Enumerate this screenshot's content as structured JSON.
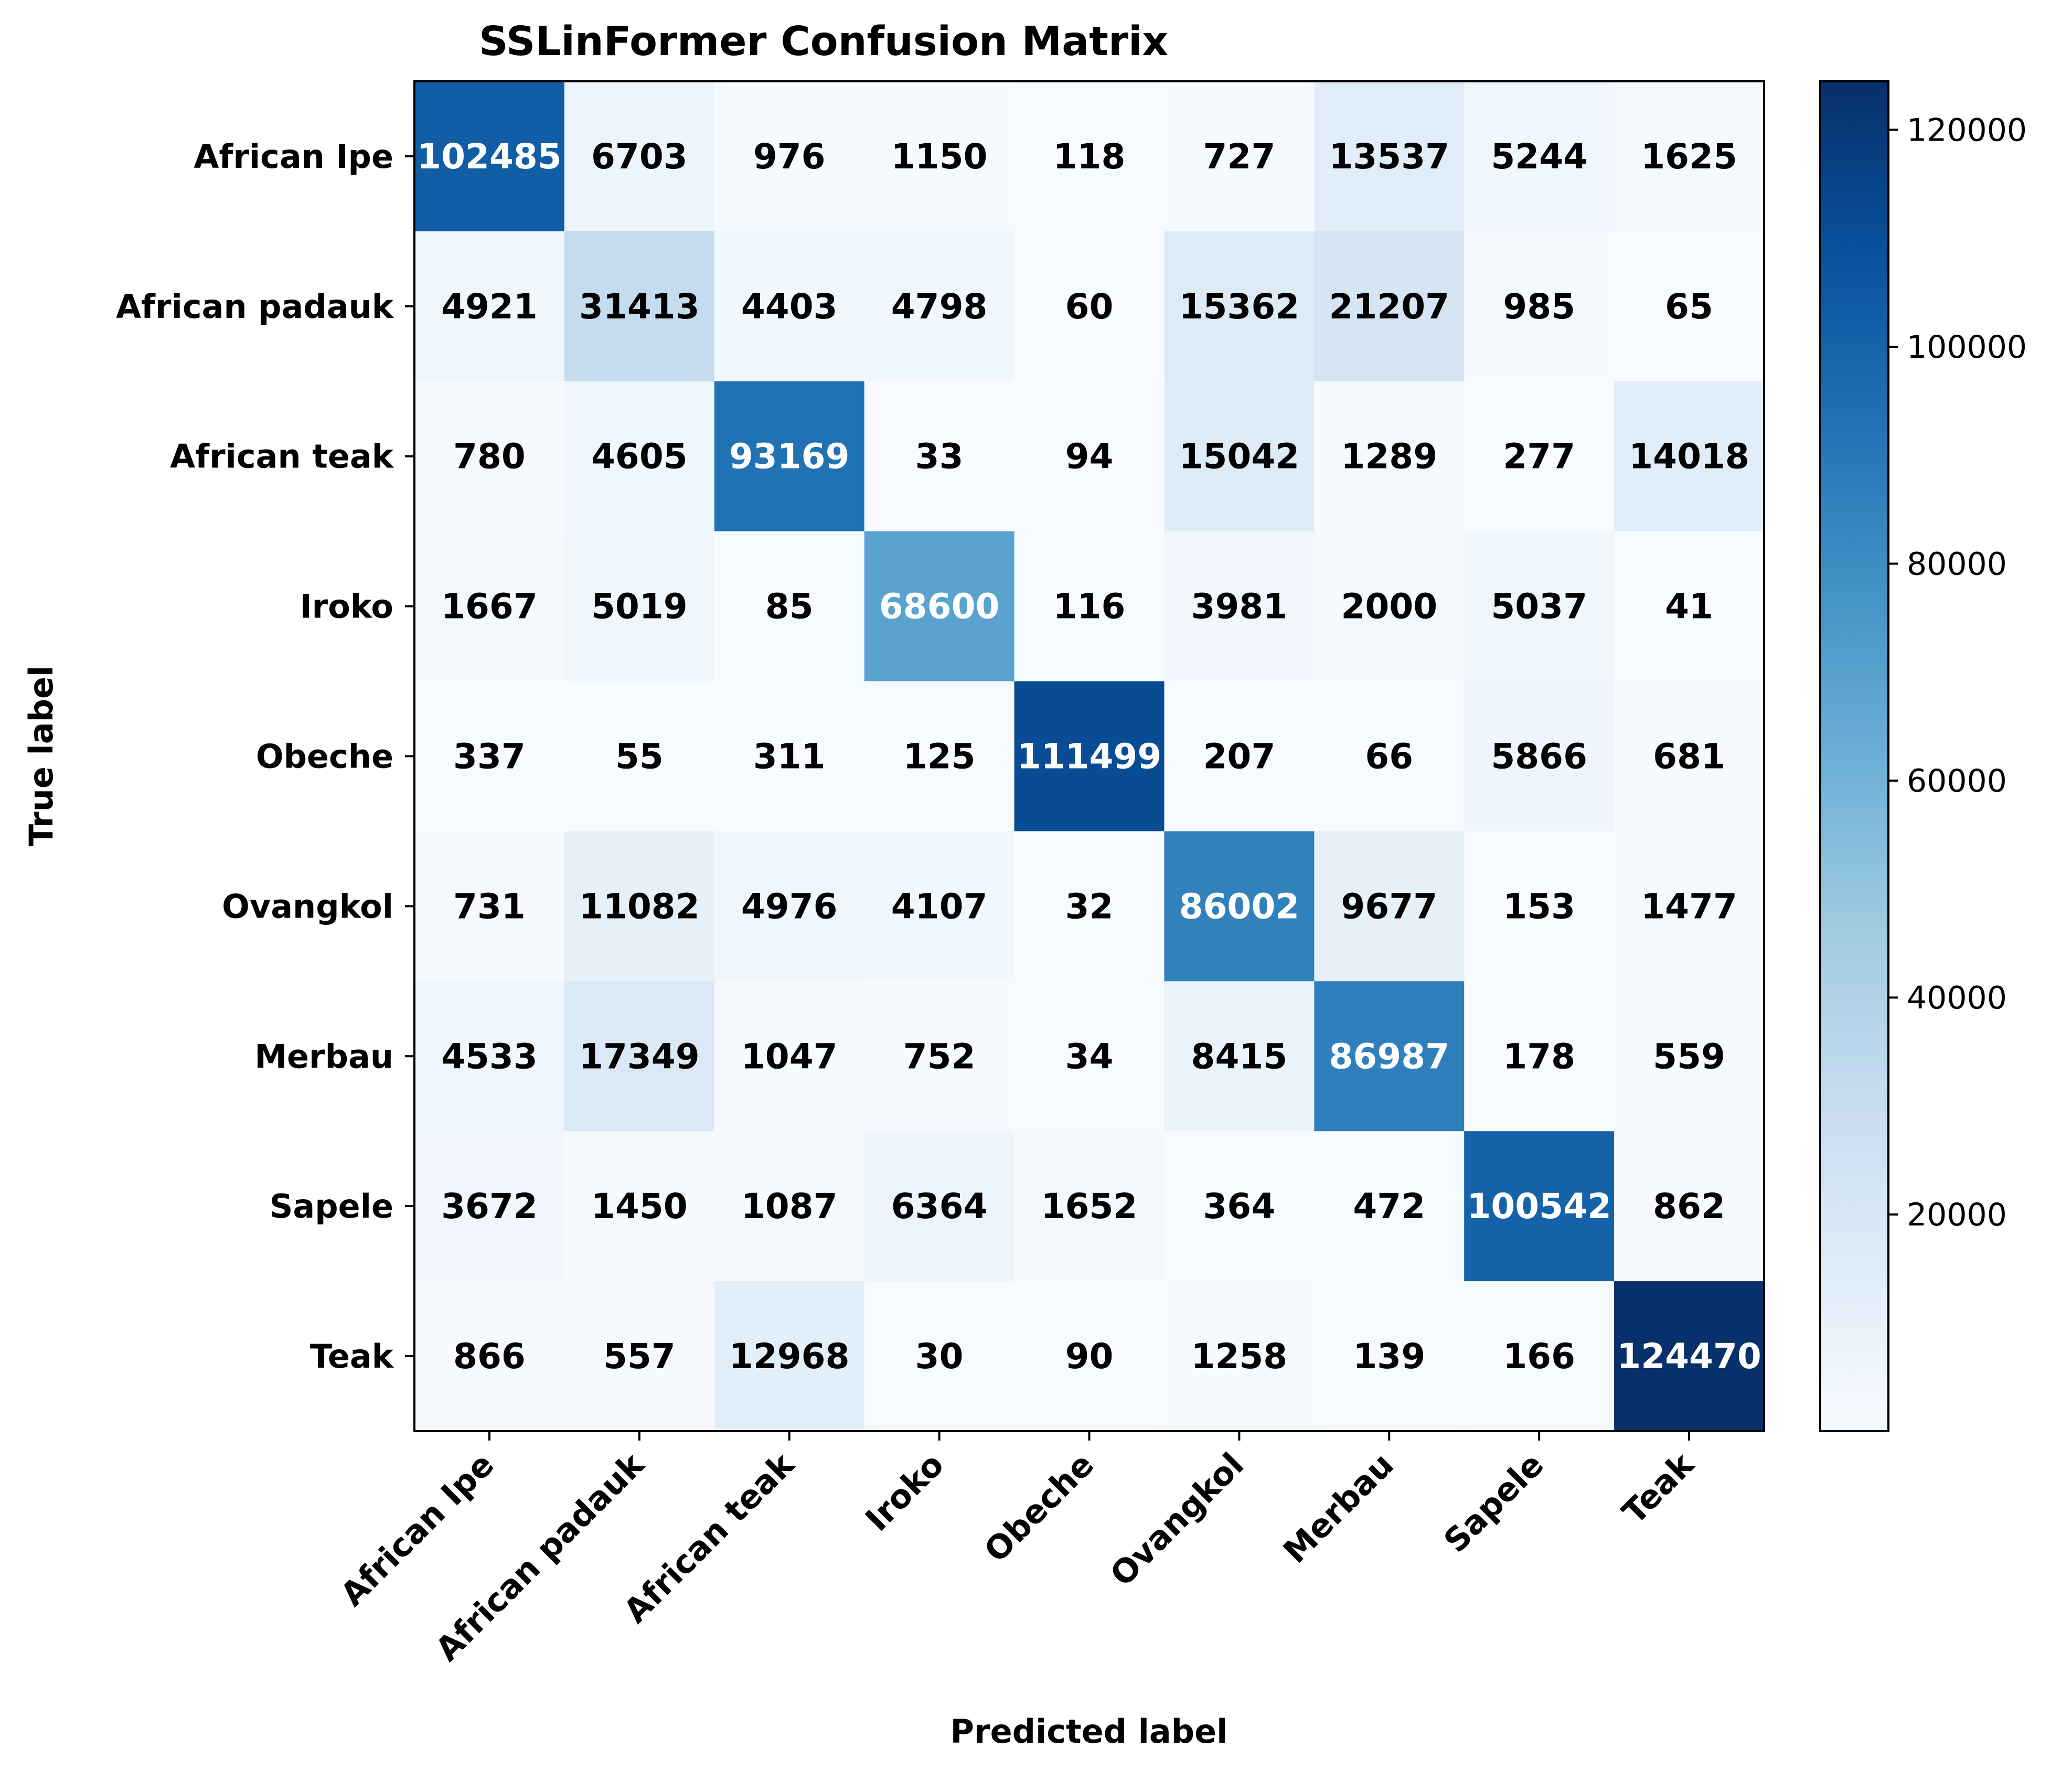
{
  "chart_data": {
    "type": "heatmap",
    "title": "SSLinFormer Confusion Matrix",
    "xlabel": "Predicted label",
    "ylabel": "True label",
    "x_categories": [
      "African Ipe",
      "African padauk",
      "African teak",
      "Iroko",
      "Obeche",
      "Ovangkol",
      "Merbau",
      "Sapele",
      "Teak"
    ],
    "y_categories": [
      "African Ipe",
      "African padauk",
      "African teak",
      "Iroko",
      "Obeche",
      "Ovangkol",
      "Merbau",
      "Sapele",
      "Teak"
    ],
    "matrix": [
      [
        102485,
        6703,
        976,
        1150,
        118,
        727,
        13537,
        5244,
        1625
      ],
      [
        4921,
        31413,
        4403,
        4798,
        60,
        15362,
        21207,
        985,
        65
      ],
      [
        780,
        4605,
        93169,
        33,
        94,
        15042,
        1289,
        277,
        14018
      ],
      [
        1667,
        5019,
        85,
        68600,
        116,
        3981,
        2000,
        5037,
        41
      ],
      [
        337,
        55,
        311,
        125,
        111499,
        207,
        66,
        5866,
        681
      ],
      [
        731,
        11082,
        4976,
        4107,
        32,
        86002,
        9677,
        153,
        1477
      ],
      [
        4533,
        17349,
        1047,
        752,
        34,
        8415,
        86987,
        178,
        559
      ],
      [
        3672,
        1450,
        1087,
        6364,
        1652,
        364,
        472,
        100542,
        862
      ],
      [
        866,
        557,
        12968,
        30,
        90,
        1258,
        139,
        166,
        124470
      ]
    ],
    "colormap": "Blues",
    "colorbar": {
      "min": 30,
      "max": 124470,
      "ticks": [
        20000,
        40000,
        60000,
        80000,
        100000,
        120000
      ]
    },
    "text_threshold": 62250,
    "text_colors": {
      "light": "#ffffff",
      "dark": "#000000"
    }
  }
}
